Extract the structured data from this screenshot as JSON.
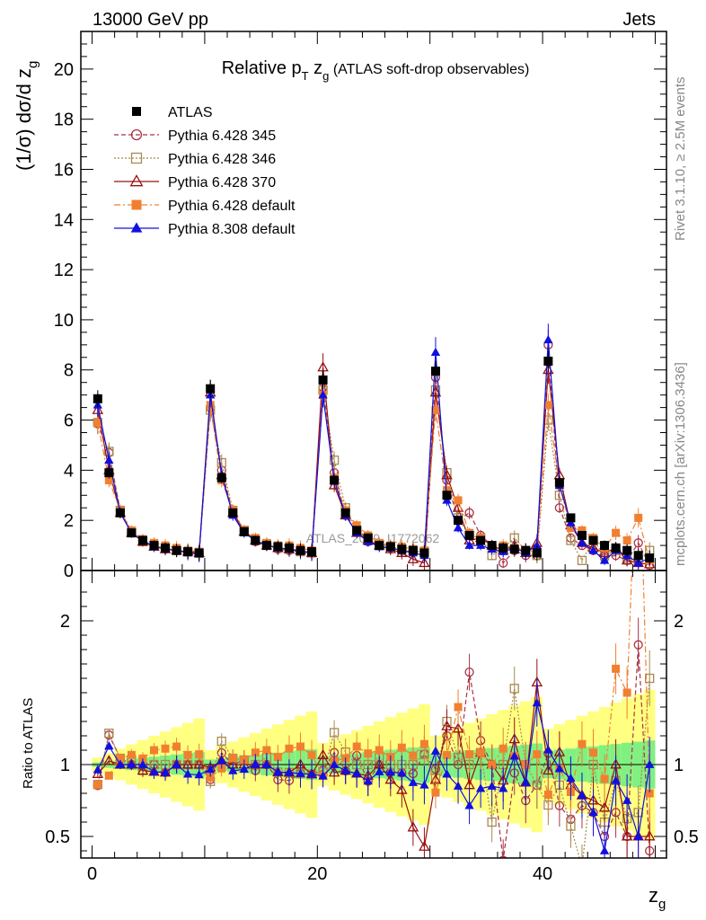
{
  "header": {
    "left": "13000 GeV pp",
    "right": "Jets"
  },
  "plot_title": {
    "main": "Relative p",
    "sub_T": "T",
    "z": " z",
    "sub_g": "g",
    "rest": " (ATLAS soft-drop observables)"
  },
  "side": {
    "rivet": "Rivet 3.1.10, ≥ 2.5M events",
    "mcplots": "mcplots.cern.ch [arXiv:1306.3436]"
  },
  "watermark": "ATLAS_2019_I1772062",
  "axes": {
    "ylabel_main": "(1/σ) dσ/d z",
    "ylabel_sub": "g",
    "ylabel_ratio": "Ratio to ATLAS",
    "xlabel_main": "z",
    "xlabel_sub": "g"
  },
  "colors": {
    "ATLAS": "#000000",
    "p345": "#aa3344",
    "p346": "#a88a50",
    "p370": "#991111",
    "p6def": "#f08030",
    "p8def": "#1010e0",
    "band_yellow": "#ffff80",
    "band_green": "#80f080"
  },
  "chart_data": {
    "type": "scatter",
    "xlim": [
      -1,
      51
    ],
    "ylim": [
      0,
      21.5
    ],
    "ratio_ylim": [
      0.35,
      2.35
    ],
    "x_ticks": [
      0,
      20,
      40
    ],
    "y_ticks": [
      0,
      2,
      4,
      6,
      8,
      10,
      12,
      14,
      16,
      18,
      20
    ],
    "ratio_ticks": [
      0.5,
      1,
      2
    ],
    "x": [
      0.5,
      1.5,
      2.5,
      3.5,
      4.5,
      5.5,
      6.5,
      7.5,
      8.5,
      9.5,
      10.5,
      11.5,
      12.5,
      13.5,
      14.5,
      15.5,
      16.5,
      17.5,
      18.5,
      19.5,
      20.5,
      21.5,
      22.5,
      23.5,
      24.5,
      25.5,
      26.5,
      27.5,
      28.5,
      29.5,
      30.5,
      31.5,
      32.5,
      33.5,
      34.5,
      35.5,
      36.5,
      37.5,
      38.5,
      39.5,
      40.5,
      41.5,
      42.5,
      43.5,
      44.5,
      45.5,
      46.5,
      47.5,
      48.5,
      49.5
    ],
    "series": [
      {
        "name": "ATLAS",
        "key": "ATLAS",
        "marker": "square-filled",
        "line": "none",
        "values": [
          6.85,
          3.9,
          2.3,
          1.5,
          1.2,
          1.0,
          0.9,
          0.8,
          0.75,
          0.7,
          7.25,
          3.7,
          2.3,
          1.55,
          1.2,
          1.0,
          0.95,
          0.9,
          0.8,
          0.75,
          7.6,
          3.6,
          2.3,
          1.6,
          1.3,
          1.0,
          0.95,
          0.85,
          0.8,
          0.7,
          7.95,
          3.0,
          2.0,
          1.4,
          1.2,
          1.0,
          0.9,
          0.85,
          0.8,
          0.7,
          8.35,
          3.5,
          2.1,
          1.4,
          1.2,
          1.0,
          0.9,
          0.8,
          0.6,
          0.5
        ]
      },
      {
        "name": "Pythia 6.428 345",
        "key": "p345",
        "marker": "circle-open",
        "line": "dashed",
        "values": [
          5.85,
          4.7,
          2.4,
          1.5,
          1.2,
          1.0,
          0.85,
          0.8,
          0.75,
          0.7,
          6.5,
          4.0,
          2.3,
          1.6,
          1.15,
          1.0,
          0.85,
          0.8,
          0.75,
          0.7,
          7.3,
          3.9,
          2.2,
          1.7,
          1.15,
          1.0,
          0.9,
          0.8,
          0.75,
          0.75,
          7.7,
          3.6,
          2.0,
          2.3,
          1.4,
          1.0,
          0.3,
          0.8,
          0.6,
          0.6,
          9.0,
          2.5,
          1.3,
          1.0,
          0.8,
          0.5,
          0.6,
          0.4,
          1.1,
          0.2
        ]
      },
      {
        "name": "Pythia 6.428 346",
        "key": "p346",
        "marker": "square-open",
        "line": "dotted",
        "values": [
          5.9,
          4.75,
          2.4,
          1.55,
          1.15,
          1.0,
          0.9,
          0.8,
          0.75,
          0.7,
          6.4,
          4.3,
          2.4,
          1.6,
          1.2,
          1.05,
          0.9,
          0.85,
          0.75,
          0.7,
          7.2,
          4.4,
          2.5,
          1.6,
          1.3,
          1.05,
          0.95,
          0.85,
          0.8,
          0.75,
          7.2,
          3.9,
          2.1,
          1.4,
          1.3,
          0.6,
          0.9,
          1.3,
          0.8,
          0.6,
          6.0,
          3.0,
          1.2,
          0.4,
          1.2,
          0.6,
          0.8,
          0.5,
          0.4,
          0.8
        ]
      },
      {
        "name": "Pythia 6.428 370",
        "key": "p370",
        "marker": "triangle-open",
        "line": "solid",
        "values": [
          6.4,
          4.0,
          2.3,
          1.5,
          1.15,
          0.95,
          0.85,
          0.8,
          0.75,
          0.7,
          7.1,
          3.8,
          2.3,
          1.55,
          1.2,
          1.0,
          0.9,
          0.85,
          0.8,
          0.7,
          8.1,
          3.4,
          2.2,
          1.5,
          1.2,
          1.0,
          0.85,
          0.7,
          0.45,
          0.3,
          7.1,
          3.8,
          2.5,
          1.2,
          1.3,
          1.0,
          0.8,
          1.0,
          0.7,
          1.1,
          8.0,
          3.8,
          1.8,
          1.1,
          0.9,
          0.7,
          0.9,
          0.4,
          0.3,
          0.25
        ]
      },
      {
        "name": "Pythia 6.428 default",
        "key": "p6def",
        "marker": "square-filled",
        "line": "dashdot",
        "values": [
          5.9,
          3.6,
          2.4,
          1.6,
          1.25,
          1.1,
          1.0,
          0.9,
          0.8,
          0.75,
          6.6,
          3.6,
          2.4,
          1.6,
          1.3,
          1.1,
          1.0,
          1.0,
          0.9,
          0.8,
          7.0,
          3.7,
          2.4,
          1.8,
          1.4,
          1.1,
          1.0,
          0.95,
          0.85,
          0.8,
          6.4,
          3.2,
          2.8,
          1.5,
          1.3,
          1.0,
          1.0,
          0.9,
          0.8,
          0.75,
          6.6,
          3.4,
          1.7,
          1.6,
          1.3,
          0.9,
          1.5,
          1.2,
          2.1,
          0.4
        ]
      },
      {
        "name": "Pythia 8.308 default",
        "key": "p8def",
        "marker": "triangle-filled",
        "line": "solid",
        "values": [
          6.6,
          4.4,
          2.3,
          1.5,
          1.2,
          0.95,
          0.85,
          0.8,
          0.7,
          0.65,
          7.0,
          3.8,
          2.2,
          1.5,
          1.2,
          1.0,
          0.9,
          0.85,
          0.75,
          0.7,
          7.0,
          3.6,
          2.2,
          1.5,
          1.15,
          0.95,
          0.9,
          0.8,
          0.7,
          0.6,
          8.7,
          2.8,
          1.7,
          1.0,
          1.0,
          0.85,
          0.75,
          0.9,
          0.7,
          1.0,
          9.2,
          3.4,
          1.9,
          1.1,
          0.8,
          0.4,
          0.8,
          0.6,
          0.3,
          0.5
        ]
      }
    ],
    "legend_position": "top-left"
  }
}
